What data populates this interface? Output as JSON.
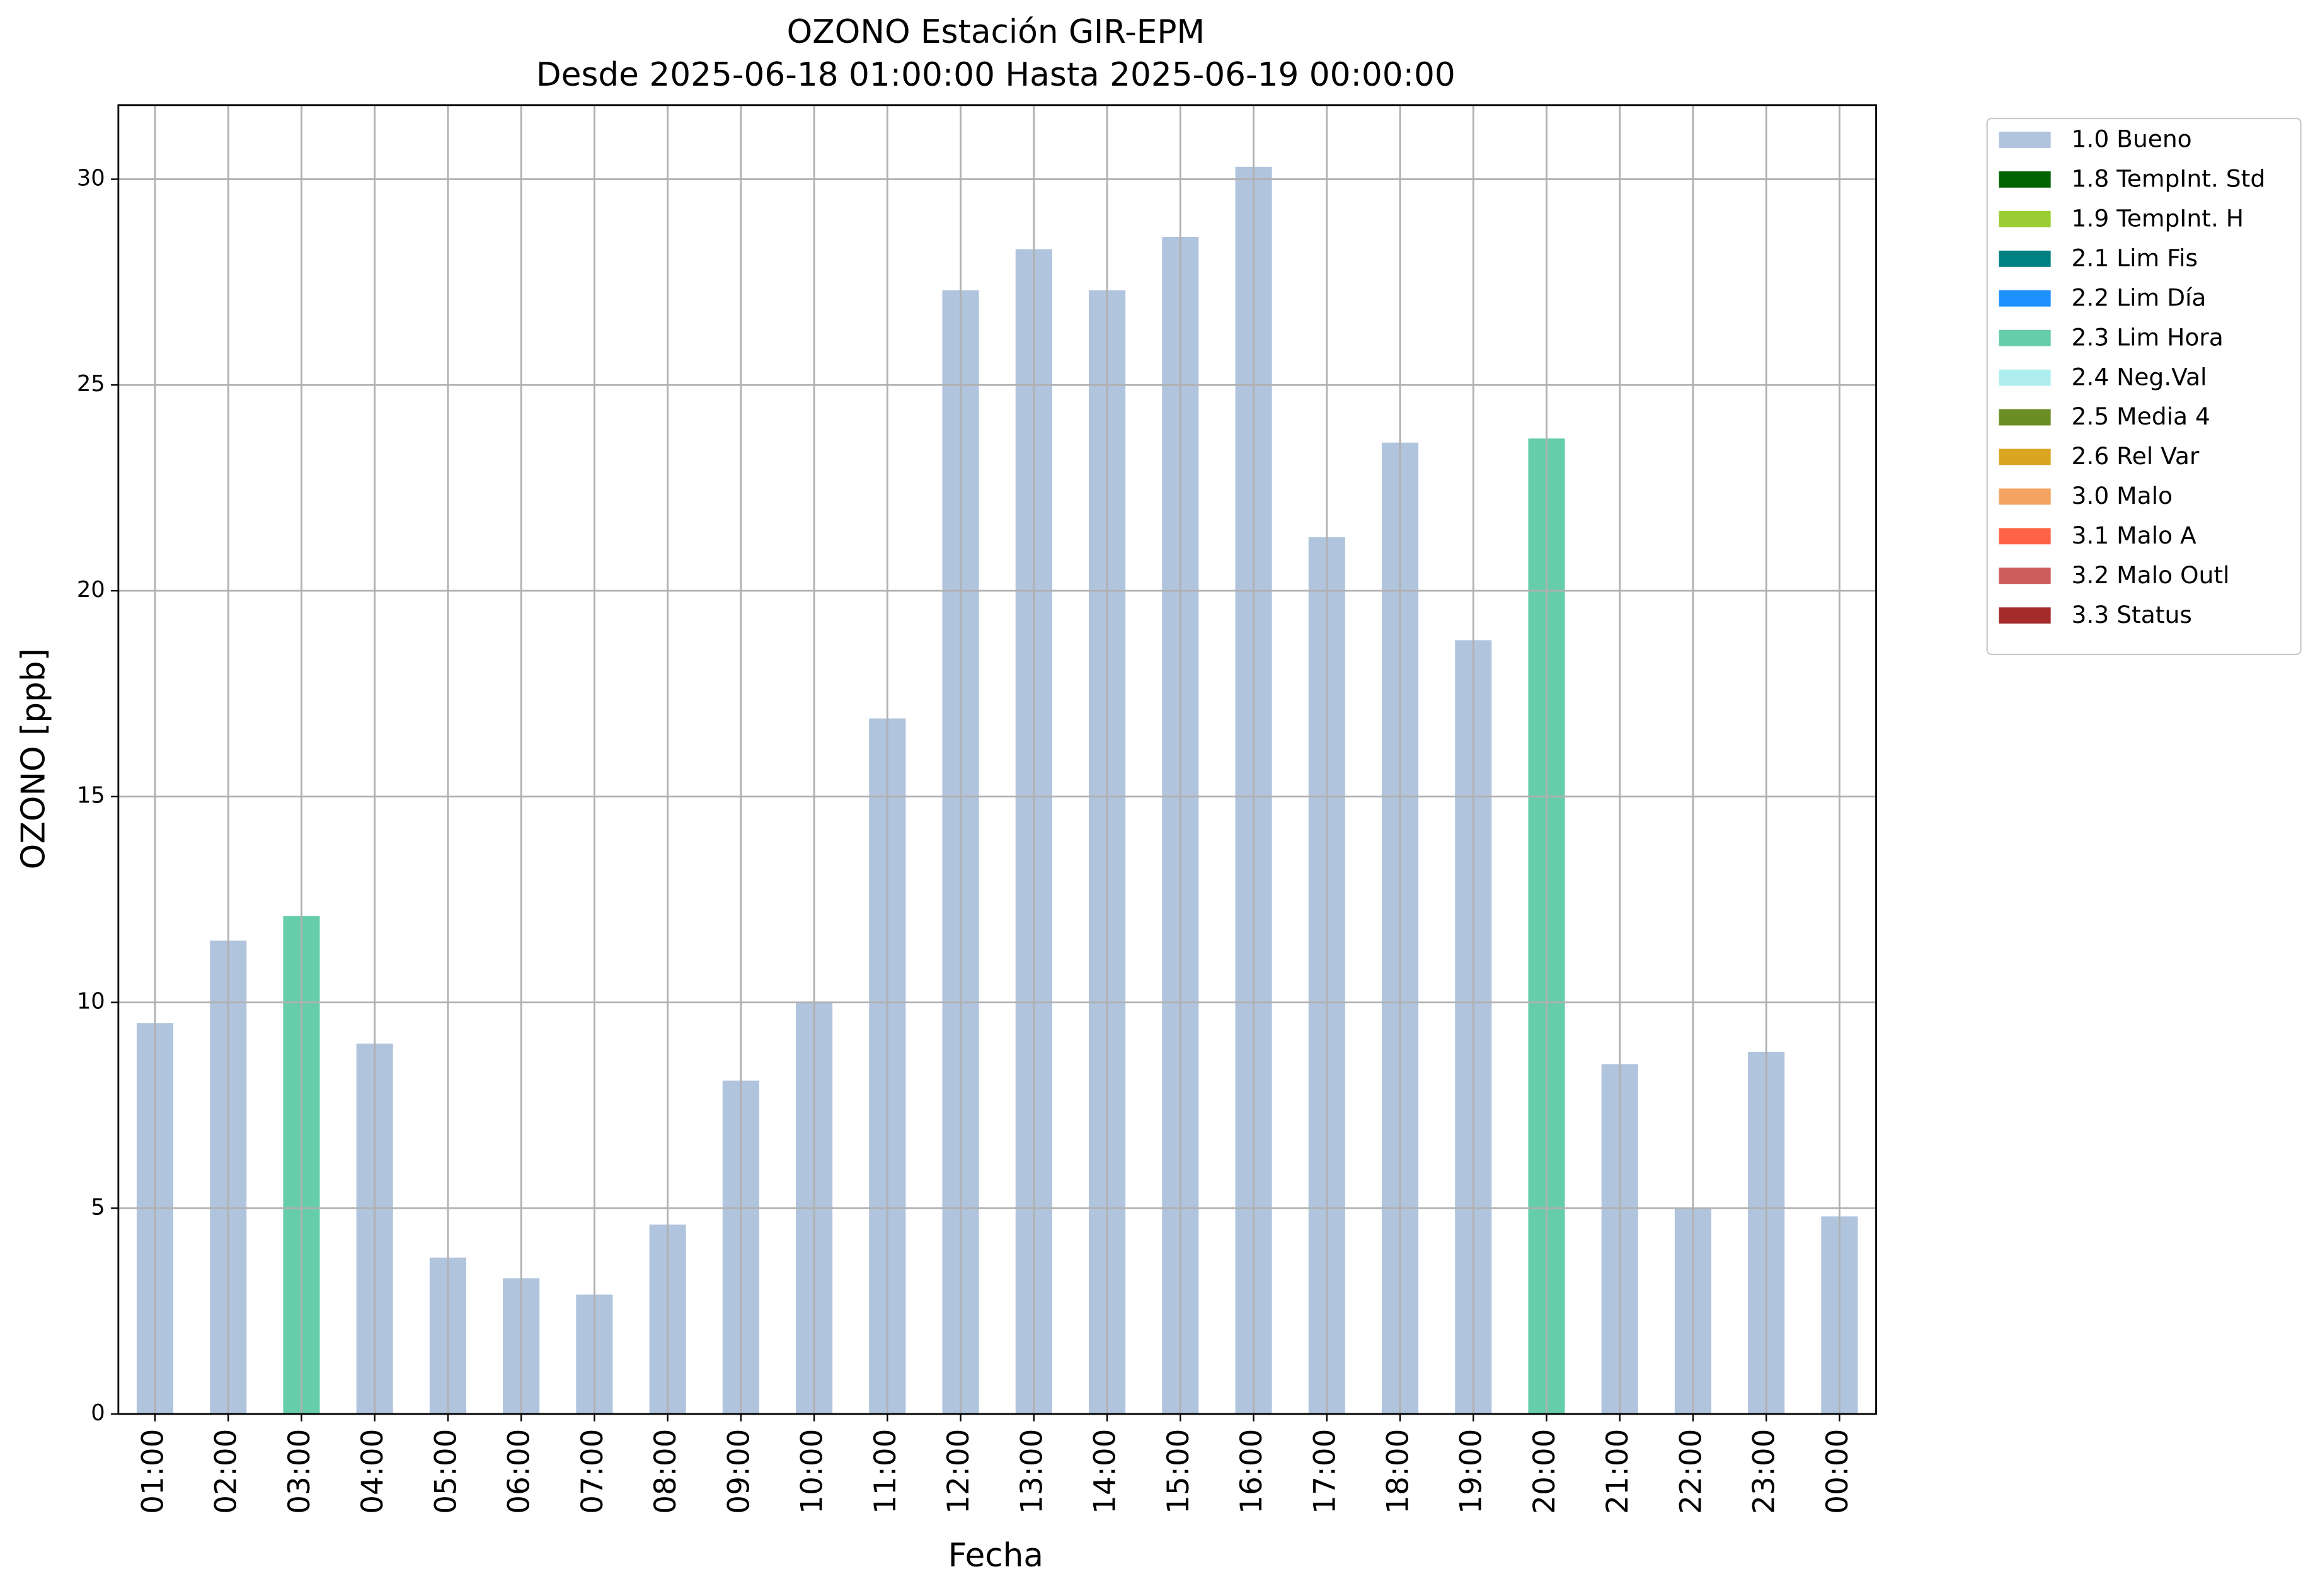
{
  "chart_data": {
    "type": "stacked_bar",
    "title": "OZONO Estación GIR-EPM",
    "subtitle": "Desde 2025-06-18 01:00:00 Hasta 2025-06-19 00:00:00",
    "x_label": "Fecha",
    "y_label": "OZONO [ppb]",
    "categories": [
      "01:00",
      "02:00",
      "03:00",
      "04:00",
      "05:00",
      "06:00",
      "07:00",
      "08:00",
      "09:00",
      "10:00",
      "11:00",
      "12:00",
      "13:00",
      "14:00",
      "15:00",
      "16:00",
      "17:00",
      "18:00",
      "19:00",
      "20:00",
      "21:00",
      "22:00",
      "23:00",
      "00:00"
    ],
    "series": [
      {
        "name": "1.0 Bueno",
        "color": "#b0c4de",
        "values": [
          9.5,
          11.5,
          null,
          9.0,
          3.8,
          3.3,
          2.9,
          4.6,
          8.1,
          10.0,
          16.9,
          27.3,
          28.3,
          27.3,
          28.6,
          30.3,
          21.3,
          23.6,
          18.8,
          null,
          8.5,
          5.0,
          8.8,
          4.8
        ]
      },
      {
        "name": "1.8 TempInt. Std",
        "color": "#006400",
        "values": [
          null,
          null,
          null,
          null,
          null,
          null,
          null,
          null,
          null,
          null,
          null,
          null,
          null,
          null,
          null,
          null,
          null,
          null,
          null,
          null,
          null,
          null,
          null,
          null
        ]
      },
      {
        "name": "1.9 TempInt. H",
        "color": "#9acd32",
        "values": [
          null,
          null,
          null,
          null,
          null,
          null,
          null,
          null,
          null,
          null,
          null,
          null,
          null,
          null,
          null,
          null,
          null,
          null,
          null,
          null,
          null,
          null,
          null,
          null
        ]
      },
      {
        "name": "2.1 Lim Fis",
        "color": "#008080",
        "values": [
          null,
          null,
          null,
          null,
          null,
          null,
          null,
          null,
          null,
          null,
          null,
          null,
          null,
          null,
          null,
          null,
          null,
          null,
          null,
          null,
          null,
          null,
          null,
          null
        ]
      },
      {
        "name": "2.2 Lim Día",
        "color": "#1e90ff",
        "values": [
          null,
          null,
          null,
          null,
          null,
          null,
          null,
          null,
          null,
          null,
          null,
          null,
          null,
          null,
          null,
          null,
          null,
          null,
          null,
          null,
          null,
          null,
          null,
          null
        ]
      },
      {
        "name": "2.3 Lim Hora",
        "color": "#66cdaa",
        "values": [
          null,
          null,
          12.1,
          null,
          null,
          null,
          null,
          null,
          null,
          null,
          null,
          null,
          null,
          null,
          null,
          null,
          null,
          null,
          null,
          23.7,
          null,
          null,
          null,
          null
        ]
      },
      {
        "name": "2.4 Neg.Val",
        "color": "#afeeee",
        "values": [
          null,
          null,
          null,
          null,
          null,
          null,
          null,
          null,
          null,
          null,
          null,
          null,
          null,
          null,
          null,
          null,
          null,
          null,
          null,
          null,
          null,
          null,
          null,
          null
        ]
      },
      {
        "name": "2.5 Media 4",
        "color": "#6b8e23",
        "values": [
          null,
          null,
          null,
          null,
          null,
          null,
          null,
          null,
          null,
          null,
          null,
          null,
          null,
          null,
          null,
          null,
          null,
          null,
          null,
          null,
          null,
          null,
          null,
          null
        ]
      },
      {
        "name": "2.6 Rel Var",
        "color": "#daa520",
        "values": [
          null,
          null,
          null,
          null,
          null,
          null,
          null,
          null,
          null,
          null,
          null,
          null,
          null,
          null,
          null,
          null,
          null,
          null,
          null,
          null,
          null,
          null,
          null,
          null
        ]
      },
      {
        "name": "3.0 Malo",
        "color": "#f4a460",
        "values": [
          null,
          null,
          null,
          null,
          null,
          null,
          null,
          null,
          null,
          null,
          null,
          null,
          null,
          null,
          null,
          null,
          null,
          null,
          null,
          null,
          null,
          null,
          null,
          null
        ]
      },
      {
        "name": "3.1 Malo A",
        "color": "#ff6347",
        "values": [
          null,
          null,
          null,
          null,
          null,
          null,
          null,
          null,
          null,
          null,
          null,
          null,
          null,
          null,
          null,
          null,
          null,
          null,
          null,
          null,
          null,
          null,
          null,
          null
        ]
      },
      {
        "name": "3.2 Malo Outl",
        "color": "#cd5c5c",
        "values": [
          null,
          null,
          null,
          null,
          null,
          null,
          null,
          null,
          null,
          null,
          null,
          null,
          null,
          null,
          null,
          null,
          null,
          null,
          null,
          null,
          null,
          null,
          null,
          null
        ]
      },
      {
        "name": "3.3 Status",
        "color": "#a52a2a",
        "values": [
          null,
          null,
          null,
          null,
          null,
          null,
          null,
          null,
          null,
          null,
          null,
          null,
          null,
          null,
          null,
          null,
          null,
          null,
          null,
          null,
          null,
          null,
          null,
          null
        ]
      }
    ],
    "ylim": [
      0,
      31.8
    ],
    "yticks": [
      0,
      5,
      10,
      15,
      20,
      25,
      30
    ],
    "grid": true,
    "legend": "outside-right"
  }
}
